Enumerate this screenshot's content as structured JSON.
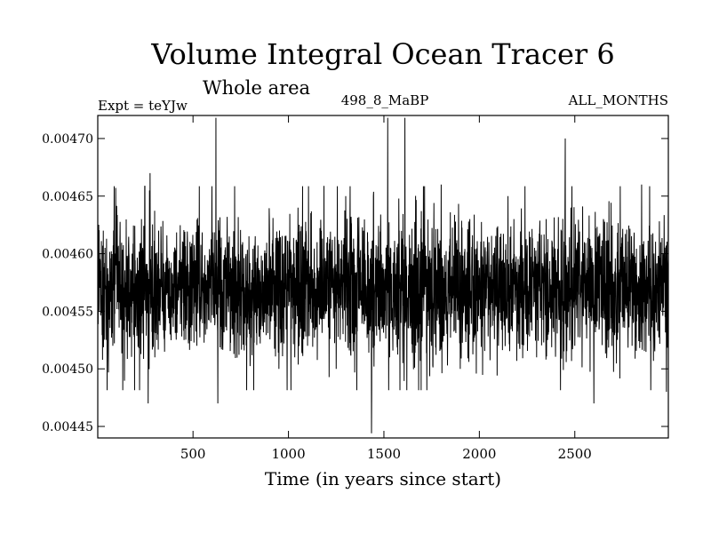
{
  "chart_data": {
    "type": "line",
    "title": "Volume Integral Ocean Tracer 6",
    "subtitle": "Whole area",
    "experiment_label": "Expt = teYJw",
    "run_label": "498_8_MaBP",
    "period_label": "ALL_MONTHS",
    "xlabel": "Time (in years since start)",
    "ylabel": "",
    "xlim": [
      1,
      2990
    ],
    "ylim": [
      0.00444,
      0.00472
    ],
    "x_ticks": [
      {
        "value": 500,
        "label": "500"
      },
      {
        "value": 1000,
        "label": "1000"
      },
      {
        "value": 1500,
        "label": "1500"
      },
      {
        "value": 2000,
        "label": "2000"
      },
      {
        "value": 2500,
        "label": "2500"
      }
    ],
    "y_ticks": [
      {
        "value": 0.00445,
        "label": "0.00445"
      },
      {
        "value": 0.0045,
        "label": "0.00450"
      },
      {
        "value": 0.00455,
        "label": "0.00455"
      },
      {
        "value": 0.0046,
        "label": "0.00460"
      },
      {
        "value": 0.00465,
        "label": "0.00465"
      },
      {
        "value": 0.0047,
        "label": "0.00470"
      }
    ],
    "series": [
      {
        "name": "Ocean Tracer 6",
        "color": "#000000",
        "sampling": "annual (years 1-2990)",
        "mean": 0.00457,
        "typical_range": [
          0.00451,
          0.00463
        ],
        "x": [
          1,
          30,
          80,
          130,
          180,
          230,
          265,
          275,
          300,
          320,
          380,
          450,
          520,
          580,
          620,
          630,
          700,
          760,
          800,
          850,
          900,
          950,
          1000,
          1050,
          1100,
          1150,
          1200,
          1250,
          1300,
          1350,
          1400,
          1435,
          1445,
          1450,
          1500,
          1520,
          1530,
          1580,
          1610,
          1650,
          1700,
          1750,
          1800,
          1850,
          1900,
          1950,
          2000,
          2050,
          2100,
          2150,
          2200,
          2250,
          2300,
          2350,
          2400,
          2450,
          2465,
          2500,
          2550,
          2600,
          2650,
          2700,
          2750,
          2800,
          2850,
          2900,
          2950,
          2980,
          2990
        ],
        "values": [
          0.00456,
          0.00462,
          0.00452,
          0.0046,
          0.00454,
          0.00463,
          0.00447,
          0.00467,
          0.00451,
          0.00462,
          0.00453,
          0.00461,
          0.00452,
          0.00459,
          0.00472,
          0.00447,
          0.00455,
          0.00461,
          0.00452,
          0.00458,
          0.00463,
          0.0045,
          0.00457,
          0.00464,
          0.00452,
          0.00461,
          0.00455,
          0.0045,
          0.00465,
          0.00453,
          0.0046,
          0.00441,
          0.00465,
          0.00452,
          0.00458,
          0.00472,
          0.00451,
          0.00462,
          0.00472,
          0.00454,
          0.00461,
          0.00452,
          0.00466,
          0.00455,
          0.0045,
          0.00463,
          0.00456,
          0.00461,
          0.00452,
          0.00465,
          0.00454,
          0.0046,
          0.00451,
          0.00463,
          0.00455,
          0.0047,
          0.00458,
          0.00452,
          0.00461,
          0.00447,
          0.00463,
          0.00454,
          0.00461,
          0.00452,
          0.00466,
          0.00455,
          0.00461,
          0.00448,
          0.00465
        ]
      }
    ]
  }
}
